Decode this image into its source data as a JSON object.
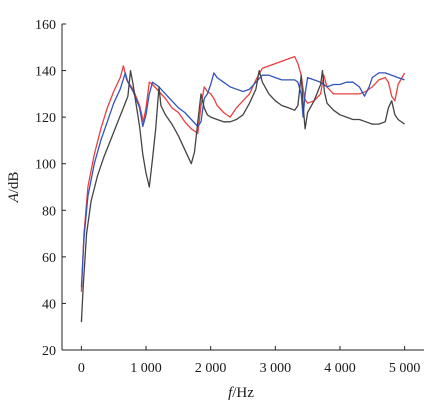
{
  "chart_data": {
    "type": "line",
    "title": "",
    "xlabel": {
      "symbol": "f",
      "unit": "/Hz"
    },
    "ylabel": {
      "symbol": "A",
      "unit": "/dB"
    },
    "xlim": [
      -300,
      5300
    ],
    "ylim": [
      20,
      160
    ],
    "xticks": [
      0,
      1000,
      2000,
      3000,
      4000,
      5000
    ],
    "xtick_labels": [
      "0",
      "1 000",
      "2 000",
      "3 000",
      "4 000",
      "5 000"
    ],
    "yticks": [
      20,
      40,
      60,
      80,
      100,
      120,
      140,
      160
    ],
    "ytick_labels": [
      "20",
      "40",
      "60",
      "80",
      "100",
      "120",
      "140",
      "160"
    ],
    "grid": false,
    "legend": "none",
    "series": [
      {
        "color": "#e84040",
        "points": [
          [
            0,
            45
          ],
          [
            40,
            70
          ],
          [
            100,
            90
          ],
          [
            200,
            104
          ],
          [
            300,
            115
          ],
          [
            400,
            124
          ],
          [
            500,
            131
          ],
          [
            600,
            137
          ],
          [
            650,
            142
          ],
          [
            700,
            136
          ],
          [
            800,
            132
          ],
          [
            900,
            125
          ],
          [
            960,
            118
          ],
          [
            1000,
            124
          ],
          [
            1050,
            135
          ],
          [
            1100,
            134
          ],
          [
            1200,
            131
          ],
          [
            1300,
            128
          ],
          [
            1400,
            124
          ],
          [
            1500,
            122
          ],
          [
            1600,
            118
          ],
          [
            1700,
            115
          ],
          [
            1800,
            113
          ],
          [
            1850,
            125
          ],
          [
            1900,
            133
          ],
          [
            1950,
            131
          ],
          [
            2000,
            130
          ],
          [
            2050,
            128
          ],
          [
            2100,
            125
          ],
          [
            2200,
            122
          ],
          [
            2300,
            120
          ],
          [
            2400,
            124
          ],
          [
            2500,
            127
          ],
          [
            2600,
            130
          ],
          [
            2700,
            136
          ],
          [
            2800,
            141
          ],
          [
            2900,
            142
          ],
          [
            3000,
            143
          ],
          [
            3100,
            144
          ],
          [
            3200,
            145
          ],
          [
            3300,
            146
          ],
          [
            3350,
            143
          ],
          [
            3400,
            138
          ],
          [
            3450,
            128
          ],
          [
            3500,
            126
          ],
          [
            3600,
            127
          ],
          [
            3700,
            130
          ],
          [
            3750,
            138
          ],
          [
            3800,
            133
          ],
          [
            3900,
            130
          ],
          [
            4000,
            130
          ],
          [
            4100,
            130
          ],
          [
            4200,
            130
          ],
          [
            4300,
            130
          ],
          [
            4400,
            131
          ],
          [
            4500,
            133
          ],
          [
            4600,
            136
          ],
          [
            4700,
            137
          ],
          [
            4750,
            135
          ],
          [
            4800,
            129
          ],
          [
            4850,
            127
          ],
          [
            4900,
            134
          ],
          [
            5000,
            139
          ]
        ]
      },
      {
        "color": "#3355bb",
        "points": [
          [
            0,
            47
          ],
          [
            40,
            68
          ],
          [
            100,
            86
          ],
          [
            200,
            100
          ],
          [
            300,
            110
          ],
          [
            400,
            118
          ],
          [
            500,
            126
          ],
          [
            600,
            132
          ],
          [
            680,
            139
          ],
          [
            720,
            135
          ],
          [
            800,
            131
          ],
          [
            900,
            124
          ],
          [
            950,
            116
          ],
          [
            1000,
            121
          ],
          [
            1050,
            130
          ],
          [
            1100,
            135
          ],
          [
            1200,
            133
          ],
          [
            1300,
            130
          ],
          [
            1400,
            127
          ],
          [
            1500,
            124
          ],
          [
            1600,
            122
          ],
          [
            1700,
            119
          ],
          [
            1800,
            116
          ],
          [
            1850,
            118
          ],
          [
            1900,
            128
          ],
          [
            1950,
            130
          ],
          [
            2000,
            134
          ],
          [
            2050,
            139
          ],
          [
            2100,
            137
          ],
          [
            2200,
            135
          ],
          [
            2300,
            133
          ],
          [
            2400,
            132
          ],
          [
            2500,
            131
          ],
          [
            2600,
            132
          ],
          [
            2700,
            135
          ],
          [
            2800,
            138
          ],
          [
            2900,
            138
          ],
          [
            3000,
            137
          ],
          [
            3100,
            136
          ],
          [
            3200,
            136
          ],
          [
            3300,
            136
          ],
          [
            3350,
            135
          ],
          [
            3400,
            130
          ],
          [
            3430,
            120
          ],
          [
            3460,
            130
          ],
          [
            3500,
            137
          ],
          [
            3600,
            136
          ],
          [
            3700,
            135
          ],
          [
            3800,
            133
          ],
          [
            3900,
            134
          ],
          [
            4000,
            134
          ],
          [
            4100,
            135
          ],
          [
            4200,
            135
          ],
          [
            4300,
            133
          ],
          [
            4380,
            129
          ],
          [
            4450,
            133
          ],
          [
            4500,
            137
          ],
          [
            4600,
            139
          ],
          [
            4700,
            139
          ],
          [
            4800,
            138
          ],
          [
            4900,
            137
          ],
          [
            5000,
            136
          ]
        ]
      },
      {
        "color": "#444444",
        "points": [
          [
            0,
            32
          ],
          [
            30,
            48
          ],
          [
            80,
            70
          ],
          [
            150,
            84
          ],
          [
            250,
            95
          ],
          [
            350,
            103
          ],
          [
            450,
            110
          ],
          [
            550,
            117
          ],
          [
            650,
            124
          ],
          [
            720,
            129
          ],
          [
            760,
            140
          ],
          [
            800,
            134
          ],
          [
            850,
            125
          ],
          [
            900,
            116
          ],
          [
            950,
            104
          ],
          [
            1000,
            96
          ],
          [
            1050,
            90
          ],
          [
            1100,
            102
          ],
          [
            1150,
            115
          ],
          [
            1180,
            126
          ],
          [
            1200,
            133
          ],
          [
            1230,
            125
          ],
          [
            1300,
            121
          ],
          [
            1400,
            117
          ],
          [
            1500,
            112
          ],
          [
            1600,
            106
          ],
          [
            1700,
            100
          ],
          [
            1750,
            105
          ],
          [
            1800,
            118
          ],
          [
            1850,
            130
          ],
          [
            1900,
            124
          ],
          [
            1950,
            121
          ],
          [
            2000,
            120
          ],
          [
            2100,
            119
          ],
          [
            2200,
            118
          ],
          [
            2300,
            118
          ],
          [
            2400,
            119
          ],
          [
            2500,
            121
          ],
          [
            2600,
            126
          ],
          [
            2700,
            132
          ],
          [
            2750,
            140
          ],
          [
            2800,
            135
          ],
          [
            2900,
            130
          ],
          [
            3000,
            127
          ],
          [
            3100,
            125
          ],
          [
            3200,
            124
          ],
          [
            3300,
            123
          ],
          [
            3350,
            125
          ],
          [
            3400,
            138
          ],
          [
            3430,
            125
          ],
          [
            3460,
            115
          ],
          [
            3500,
            122
          ],
          [
            3600,
            127
          ],
          [
            3700,
            134
          ],
          [
            3730,
            140
          ],
          [
            3760,
            131
          ],
          [
            3800,
            126
          ],
          [
            3900,
            123
          ],
          [
            4000,
            121
          ],
          [
            4100,
            120
          ],
          [
            4200,
            119
          ],
          [
            4300,
            119
          ],
          [
            4400,
            118
          ],
          [
            4500,
            117
          ],
          [
            4600,
            117
          ],
          [
            4700,
            118
          ],
          [
            4750,
            124
          ],
          [
            4800,
            127
          ],
          [
            4850,
            121
          ],
          [
            4900,
            119
          ],
          [
            5000,
            117
          ]
        ]
      }
    ]
  }
}
